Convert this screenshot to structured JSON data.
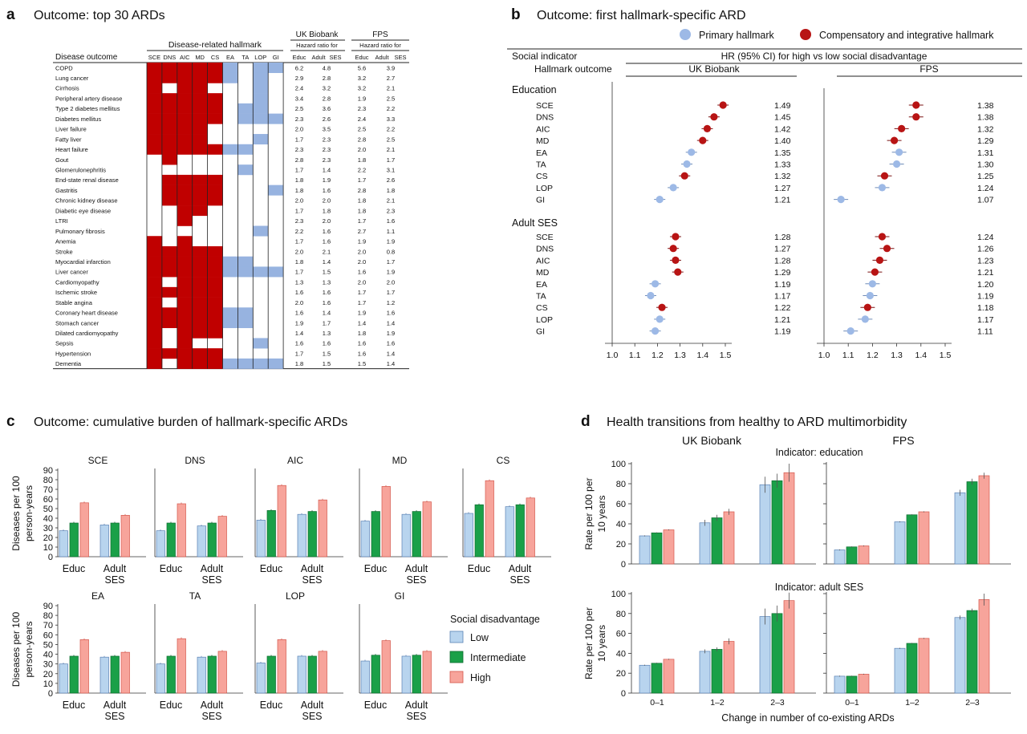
{
  "panel_a": {
    "letter": "a",
    "title": "Outcome: top 30 ARDs",
    "group_header": "Disease-related hallmark",
    "col_disease": "Disease outcome",
    "ukb_header": "UK Biobank",
    "fps_header": "FPS",
    "hr_for": "Hazard ratio for",
    "hr_cols": [
      "Educ",
      "Adult",
      "SES",
      "Educ",
      "Adult",
      "SES"
    ],
    "hallmarks": [
      "SCE",
      "DNS",
      "AIC",
      "MD",
      "CS",
      "EA",
      "TA",
      "LOP",
      "GI"
    ],
    "rows": [
      {
        "name": "COPD",
        "hm": [
          1,
          1,
          1,
          1,
          1,
          2,
          0,
          2,
          2
        ],
        "ukb": [
          "6.2",
          "4.8"
        ],
        "fps": [
          "5.6",
          "3.9"
        ]
      },
      {
        "name": "Lung cancer",
        "hm": [
          1,
          1,
          1,
          1,
          1,
          2,
          0,
          2,
          0
        ],
        "ukb": [
          "2.9",
          "2.8"
        ],
        "fps": [
          "3.2",
          "2.7"
        ]
      },
      {
        "name": "Cirrhosis",
        "hm": [
          1,
          0,
          1,
          1,
          0,
          0,
          0,
          2,
          0
        ],
        "ukb": [
          "2.4",
          "3.2"
        ],
        "fps": [
          "3.2",
          "2.1"
        ]
      },
      {
        "name": "Peripheral artery disease",
        "hm": [
          1,
          1,
          1,
          1,
          1,
          0,
          0,
          2,
          0
        ],
        "ukb": [
          "3.4",
          "2.8"
        ],
        "fps": [
          "1.9",
          "2.5"
        ]
      },
      {
        "name": "Type 2 diabetes mellitus",
        "hm": [
          1,
          1,
          1,
          1,
          1,
          0,
          2,
          2,
          0
        ],
        "ukb": [
          "2.5",
          "3.6"
        ],
        "fps": [
          "2.3",
          "2.2"
        ]
      },
      {
        "name": "Diabetes mellitus",
        "hm": [
          1,
          1,
          1,
          1,
          1,
          0,
          2,
          2,
          2
        ],
        "ukb": [
          "2.3",
          "2.6"
        ],
        "fps": [
          "2.4",
          "3.3"
        ]
      },
      {
        "name": "Liver failure",
        "hm": [
          1,
          1,
          1,
          1,
          0,
          0,
          0,
          0,
          0
        ],
        "ukb": [
          "2.0",
          "3.5"
        ],
        "fps": [
          "2.5",
          "2.2"
        ]
      },
      {
        "name": "Fatty liver",
        "hm": [
          1,
          1,
          1,
          1,
          0,
          0,
          0,
          2,
          0
        ],
        "ukb": [
          "1.7",
          "2.3"
        ],
        "fps": [
          "2.8",
          "2.5"
        ]
      },
      {
        "name": "Heart failure",
        "hm": [
          1,
          1,
          1,
          1,
          1,
          2,
          2,
          0,
          0
        ],
        "ukb": [
          "2.3",
          "2.3"
        ],
        "fps": [
          "2.0",
          "2.1"
        ]
      },
      {
        "name": "Gout",
        "hm": [
          0,
          1,
          0,
          0,
          0,
          0,
          0,
          0,
          0
        ],
        "ukb": [
          "2.8",
          "2.3"
        ],
        "fps": [
          "1.8",
          "1.7"
        ]
      },
      {
        "name": "Glomerulonephritis",
        "hm": [
          0,
          0,
          0,
          0,
          0,
          0,
          2,
          0,
          0
        ],
        "ukb": [
          "1.7",
          "1.4"
        ],
        "fps": [
          "2.2",
          "3.1"
        ]
      },
      {
        "name": "End-state renal disease",
        "hm": [
          0,
          1,
          1,
          1,
          1,
          0,
          0,
          0,
          0
        ],
        "ukb": [
          "1.8",
          "1.9"
        ],
        "fps": [
          "1.7",
          "2.6"
        ]
      },
      {
        "name": "Gastritis",
        "hm": [
          0,
          1,
          1,
          1,
          1,
          0,
          0,
          0,
          2
        ],
        "ukb": [
          "1.8",
          "1.6"
        ],
        "fps": [
          "2.8",
          "1.8"
        ]
      },
      {
        "name": "Chronic kidney disease",
        "hm": [
          0,
          1,
          1,
          1,
          1,
          0,
          0,
          0,
          0
        ],
        "ukb": [
          "2.0",
          "2.0"
        ],
        "fps": [
          "1.8",
          "2.1"
        ]
      },
      {
        "name": "Diabetic eye disease",
        "hm": [
          0,
          0,
          1,
          1,
          0,
          0,
          0,
          0,
          0
        ],
        "ukb": [
          "1.7",
          "1.8"
        ],
        "fps": [
          "1.8",
          "2.3"
        ]
      },
      {
        "name": "LTRI",
        "hm": [
          0,
          0,
          1,
          0,
          0,
          0,
          0,
          0,
          0
        ],
        "ukb": [
          "2.3",
          "2.0"
        ],
        "fps": [
          "1.7",
          "1.6"
        ]
      },
      {
        "name": "Pulmonary fibrosis",
        "hm": [
          0,
          0,
          0,
          0,
          0,
          0,
          0,
          2,
          0
        ],
        "ukb": [
          "2.2",
          "1.6"
        ],
        "fps": [
          "2.7",
          "1.1"
        ]
      },
      {
        "name": "Anemia",
        "hm": [
          1,
          0,
          1,
          0,
          0,
          0,
          0,
          0,
          0
        ],
        "ukb": [
          "1.7",
          "1.6"
        ],
        "fps": [
          "1.9",
          "1.9"
        ]
      },
      {
        "name": "Stroke",
        "hm": [
          1,
          1,
          1,
          1,
          1,
          0,
          0,
          0,
          0
        ],
        "ukb": [
          "2.0",
          "2.1"
        ],
        "fps": [
          "2.0",
          "0.8"
        ]
      },
      {
        "name": "Myocardial infarction",
        "hm": [
          1,
          1,
          1,
          1,
          1,
          2,
          2,
          0,
          0
        ],
        "ukb": [
          "1.8",
          "1.4"
        ],
        "fps": [
          "2.0",
          "1.7"
        ]
      },
      {
        "name": "Liver cancer",
        "hm": [
          1,
          1,
          1,
          1,
          1,
          2,
          2,
          2,
          2
        ],
        "ukb": [
          "1.7",
          "1.5"
        ],
        "fps": [
          "1.6",
          "1.9"
        ]
      },
      {
        "name": "Cardiomyopathy",
        "hm": [
          1,
          0,
          1,
          1,
          1,
          0,
          0,
          0,
          0
        ],
        "ukb": [
          "1.3",
          "1.3"
        ],
        "fps": [
          "2.0",
          "2.0"
        ]
      },
      {
        "name": "Ischemic stroke",
        "hm": [
          1,
          1,
          1,
          1,
          1,
          0,
          0,
          0,
          0
        ],
        "ukb": [
          "1.6",
          "1.6"
        ],
        "fps": [
          "1.7",
          "1.7"
        ]
      },
      {
        "name": "Stable angina",
        "hm": [
          1,
          0,
          1,
          1,
          1,
          0,
          0,
          0,
          0
        ],
        "ukb": [
          "2.0",
          "1.6"
        ],
        "fps": [
          "1.7",
          "1.2"
        ]
      },
      {
        "name": "Coronary heart disease",
        "hm": [
          1,
          1,
          1,
          1,
          1,
          2,
          2,
          0,
          0
        ],
        "ukb": [
          "1.6",
          "1.4"
        ],
        "fps": [
          "1.9",
          "1.6"
        ]
      },
      {
        "name": "Stomach cancer",
        "hm": [
          1,
          1,
          1,
          1,
          1,
          2,
          2,
          0,
          0
        ],
        "ukb": [
          "1.9",
          "1.7"
        ],
        "fps": [
          "1.4",
          "1.4"
        ]
      },
      {
        "name": "Dilated cardiomyopathy",
        "hm": [
          1,
          0,
          1,
          1,
          1,
          0,
          0,
          0,
          0
        ],
        "ukb": [
          "1.4",
          "1.3"
        ],
        "fps": [
          "1.8",
          "1.9"
        ]
      },
      {
        "name": "Sepsis",
        "hm": [
          1,
          0,
          1,
          0,
          0,
          0,
          0,
          2,
          0
        ],
        "ukb": [
          "1.6",
          "1.6"
        ],
        "fps": [
          "1.6",
          "1.6"
        ]
      },
      {
        "name": "Hypertension",
        "hm": [
          1,
          1,
          1,
          1,
          1,
          0,
          0,
          0,
          0
        ],
        "ukb": [
          "1.7",
          "1.5"
        ],
        "fps": [
          "1.6",
          "1.4"
        ]
      },
      {
        "name": "Dementia",
        "hm": [
          1,
          0,
          1,
          1,
          1,
          2,
          2,
          2,
          2
        ],
        "ukb": [
          "1.8",
          "1.5"
        ],
        "fps": [
          "1.5",
          "1.4"
        ]
      }
    ]
  },
  "panel_b": {
    "letter": "b",
    "title": "Outcome: first hallmark-specific ARD",
    "legend": {
      "primary": "Primary hallmark",
      "comp": "Compensatory and integrative hallmark"
    },
    "social_indicator": "Social indicator",
    "hr_header": "HR (95% CI) for high vs low social disadvantage",
    "hallmark_outcome": "Hallmark outcome",
    "ukb": "UK Biobank",
    "fps": "FPS",
    "groups": [
      {
        "name": "Education",
        "rows": [
          {
            "label": "SCE",
            "type": "comp",
            "ukb": 1.49,
            "ukb_t": "1.49",
            "fps": 1.38,
            "fps_t": "1.38"
          },
          {
            "label": "DNS",
            "type": "comp",
            "ukb": 1.45,
            "ukb_t": "1.45",
            "fps": 1.38,
            "fps_t": "1.38"
          },
          {
            "label": "AIC",
            "type": "comp",
            "ukb": 1.42,
            "ukb_t": "1.42",
            "fps": 1.32,
            "fps_t": "1.32"
          },
          {
            "label": "MD",
            "type": "comp",
            "ukb": 1.4,
            "ukb_t": "1.40",
            "fps": 1.29,
            "fps_t": "1.29"
          },
          {
            "label": "EA",
            "type": "primary",
            "ukb": 1.35,
            "ukb_t": "1.35",
            "fps": 1.31,
            "fps_t": "1.31"
          },
          {
            "label": "TA",
            "type": "primary",
            "ukb": 1.33,
            "ukb_t": "1.33",
            "fps": 1.3,
            "fps_t": "1.30"
          },
          {
            "label": "CS",
            "type": "comp",
            "ukb": 1.32,
            "ukb_t": "1.32",
            "fps": 1.25,
            "fps_t": "1.25"
          },
          {
            "label": "LOP",
            "type": "primary",
            "ukb": 1.27,
            "ukb_t": "1.27",
            "fps": 1.24,
            "fps_t": "1.24"
          },
          {
            "label": "GI",
            "type": "primary",
            "ukb": 1.21,
            "ukb_t": "1.21",
            "fps": 1.07,
            "fps_t": "1.07"
          }
        ]
      },
      {
        "name": "Adult SES",
        "rows": [
          {
            "label": "SCE",
            "type": "comp",
            "ukb": 1.28,
            "ukb_t": "1.28",
            "fps": 1.24,
            "fps_t": "1.24"
          },
          {
            "label": "DNS",
            "type": "comp",
            "ukb": 1.27,
            "ukb_t": "1.27",
            "fps": 1.26,
            "fps_t": "1.26"
          },
          {
            "label": "AIC",
            "type": "comp",
            "ukb": 1.28,
            "ukb_t": "1.28",
            "fps": 1.23,
            "fps_t": "1.23"
          },
          {
            "label": "MD",
            "type": "comp",
            "ukb": 1.29,
            "ukb_t": "1.29",
            "fps": 1.21,
            "fps_t": "1.21"
          },
          {
            "label": "EA",
            "type": "primary",
            "ukb": 1.19,
            "ukb_t": "1.19",
            "fps": 1.2,
            "fps_t": "1.20"
          },
          {
            "label": "TA",
            "type": "primary",
            "ukb": 1.17,
            "ukb_t": "1.17",
            "fps": 1.19,
            "fps_t": "1.19"
          },
          {
            "label": "CS",
            "type": "comp",
            "ukb": 1.22,
            "ukb_t": "1.22",
            "fps": 1.18,
            "fps_t": "1.18"
          },
          {
            "label": "LOP",
            "type": "primary",
            "ukb": 1.21,
            "ukb_t": "1.21",
            "fps": 1.17,
            "fps_t": "1.17"
          },
          {
            "label": "GI",
            "type": "primary",
            "ukb": 1.19,
            "ukb_t": "1.19",
            "fps": 1.11,
            "fps_t": "1.11"
          }
        ]
      }
    ],
    "axis_ticks": [
      "1.0",
      "1.1",
      "1.2",
      "1.3",
      "1.4",
      "1.5"
    ],
    "ukb_xlim": [
      1.0,
      1.55
    ],
    "fps_xlim": [
      1.0,
      1.5
    ]
  },
  "panel_c": {
    "letter": "c",
    "title": "Outcome: cumulative burden of hallmark-specific ARDs",
    "ylabel": "Diseases per 100 person-years",
    "ylabel_l1": "Diseases per 100",
    "ylabel_l2": "person-years",
    "yticks": [
      "0",
      "10",
      "20",
      "30",
      "40",
      "50",
      "60",
      "70",
      "80",
      "90"
    ],
    "ylim": [
      0,
      90
    ],
    "group_labels": [
      [
        "Educ",
        ""
      ],
      [
        "Adult",
        "SES"
      ]
    ],
    "legend_title": "Social disadvantage",
    "legend_items": [
      "Low",
      "Intermediate",
      "High"
    ],
    "charts": [
      {
        "title": "SCE",
        "educ": [
          27,
          35,
          56
        ],
        "ses": [
          33,
          35,
          43
        ]
      },
      {
        "title": "DNS",
        "educ": [
          27,
          35,
          55
        ],
        "ses": [
          32,
          35,
          42
        ]
      },
      {
        "title": "AIC",
        "educ": [
          38,
          48,
          74
        ],
        "ses": [
          44,
          47,
          59
        ]
      },
      {
        "title": "MD",
        "educ": [
          37,
          47,
          73
        ],
        "ses": [
          44,
          47,
          57
        ]
      },
      {
        "title": "CS",
        "educ": [
          45,
          54,
          79
        ],
        "ses": [
          52,
          54,
          61
        ]
      },
      {
        "title": "EA",
        "educ": [
          30,
          38,
          55
        ],
        "ses": [
          37,
          38,
          42
        ]
      },
      {
        "title": "TA",
        "educ": [
          30,
          38,
          56
        ],
        "ses": [
          37,
          38,
          43
        ]
      },
      {
        "title": "LOP",
        "educ": [
          31,
          38,
          55
        ],
        "ses": [
          38,
          38,
          43
        ]
      },
      {
        "title": "GI",
        "educ": [
          33,
          39,
          54
        ],
        "ses": [
          38,
          39,
          43
        ]
      }
    ]
  },
  "panel_d": {
    "letter": "d",
    "title": "Health transitions from healthy to ARD multimorbidity",
    "col_ukb": "UK Biobank",
    "col_fps": "FPS",
    "ind_educ": "Indicator: education",
    "ind_ses": "Indicator: adult SES",
    "ylabel_l1": "Rate per 100 per",
    "ylabel_l2": "10 years",
    "yticks": [
      "0",
      "20",
      "40",
      "60",
      "80",
      "100"
    ],
    "ylim": [
      0,
      100
    ],
    "categories": [
      "0–1",
      "1–2",
      "2–3"
    ],
    "xlabel": "Change in number of co-existing ARDs",
    "charts": [
      {
        "row": 0,
        "col": 0,
        "values": [
          [
            28,
            31,
            34
          ],
          [
            41,
            46,
            52
          ],
          [
            79,
            83,
            91
          ]
        ],
        "err": [
          [
            0.5,
            0.5,
            0.5
          ],
          [
            3,
            3,
            3
          ],
          [
            8,
            7,
            9
          ]
        ]
      },
      {
        "row": 0,
        "col": 1,
        "values": [
          [
            14,
            17,
            18
          ],
          [
            42,
            49,
            52
          ],
          [
            71,
            82,
            88
          ]
        ],
        "err": [
          [
            0.5,
            0.5,
            0.5
          ],
          [
            0.5,
            0.5,
            0.5
          ],
          [
            3,
            3,
            3
          ]
        ]
      },
      {
        "row": 1,
        "col": 0,
        "values": [
          [
            28,
            30,
            34
          ],
          [
            42,
            44,
            52
          ],
          [
            77,
            80,
            93
          ]
        ],
        "err": [
          [
            0.5,
            0.5,
            0.5
          ],
          [
            2,
            2,
            3
          ],
          [
            8,
            8,
            8
          ]
        ]
      },
      {
        "row": 1,
        "col": 1,
        "values": [
          [
            17,
            17,
            19
          ],
          [
            45,
            50,
            55
          ],
          [
            76,
            83,
            94
          ]
        ],
        "err": [
          [
            0.5,
            0.5,
            0.5
          ],
          [
            0.5,
            0.5,
            0.5
          ],
          [
            2,
            2,
            6
          ]
        ]
      }
    ]
  },
  "colors": {
    "red_cell": "#c00000",
    "blue_cell": "#97b3e0",
    "comp_dot": "#b81414",
    "primary_dot": "#9db9e6",
    "low": "#b8d4ee",
    "low_edge": "#5b82b4",
    "mid": "#1aa048",
    "high": "#f7a49b",
    "high_edge": "#d4574c"
  }
}
